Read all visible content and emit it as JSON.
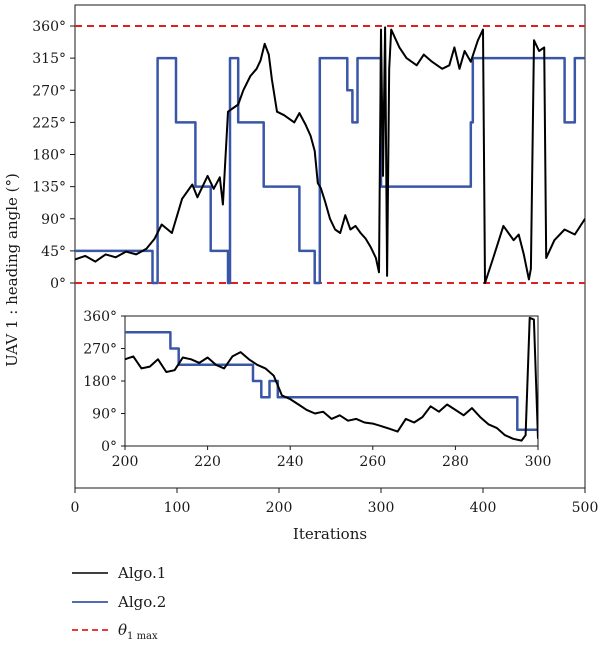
{
  "chart_data": [
    {
      "type": "line",
      "xlabel": "Iterations",
      "ylabel": "UAV 1 : heading angle (°)",
      "xlim": [
        0,
        500
      ],
      "ylim": [
        0,
        360
      ],
      "xticks": [
        "0",
        "100",
        "200",
        "300",
        "400",
        "500"
      ],
      "yticks": [
        "0°",
        "45°",
        "90°",
        "135°",
        "180°",
        "225°",
        "270°",
        "315°",
        "360°"
      ],
      "legend": {
        "placement": "below",
        "entries": [
          "Algo.1",
          "Algo.2",
          "θ1 max"
        ]
      },
      "colors": {
        "algo1": "#000000",
        "algo2": "#3a56a8",
        "theta": "#e02020"
      },
      "series": [
        {
          "name": "Algo.1",
          "points": [
            [
              0,
              33
            ],
            [
              10,
              38
            ],
            [
              20,
              30
            ],
            [
              30,
              40
            ],
            [
              40,
              36
            ],
            [
              50,
              44
            ],
            [
              60,
              40
            ],
            [
              70,
              48
            ],
            [
              78,
              62
            ],
            [
              85,
              82
            ],
            [
              95,
              70
            ],
            [
              105,
              118
            ],
            [
              115,
              138
            ],
            [
              120,
              120
            ],
            [
              130,
              150
            ],
            [
              136,
              132
            ],
            [
              142,
              148
            ],
            [
              145,
              110
            ],
            [
              150,
              240
            ],
            [
              160,
              250
            ],
            [
              165,
              270
            ],
            [
              172,
              290
            ],
            [
              178,
              300
            ],
            [
              182,
              312
            ],
            [
              186,
              335
            ],
            [
              190,
              320
            ],
            [
              193,
              285
            ],
            [
              198,
              240
            ],
            [
              205,
              235
            ],
            [
              215,
              225
            ],
            [
              220,
              238
            ],
            [
              226,
              222
            ],
            [
              231,
              206
            ],
            [
              235,
              185
            ],
            [
              238,
              140
            ],
            [
              241,
              133
            ],
            [
              245,
              115
            ],
            [
              250,
              90
            ],
            [
              255,
              75
            ],
            [
              260,
              70
            ],
            [
              265,
              95
            ],
            [
              270,
              75
            ],
            [
              275,
              80
            ],
            [
              280,
              70
            ],
            [
              285,
              62
            ],
            [
              290,
              50
            ],
            [
              295,
              35
            ],
            [
              298,
              15
            ],
            [
              300,
              355
            ],
            [
              302,
              150
            ],
            [
              304,
              358
            ],
            [
              306,
              10
            ],
            [
              308,
              300
            ],
            [
              310,
              355
            ],
            [
              318,
              330
            ],
            [
              325,
              315
            ],
            [
              335,
              305
            ],
            [
              342,
              320
            ],
            [
              350,
              310
            ],
            [
              360,
              300
            ],
            [
              367,
              305
            ],
            [
              372,
              330
            ],
            [
              377,
              300
            ],
            [
              382,
              325
            ],
            [
              388,
              310
            ],
            [
              395,
              340
            ],
            [
              400,
              355
            ],
            [
              402,
              0
            ],
            [
              410,
              35
            ],
            [
              420,
              80
            ],
            [
              430,
              60
            ],
            [
              435,
              68
            ],
            [
              440,
              40
            ],
            [
              445,
              5
            ],
            [
              447,
              20
            ],
            [
              450,
              340
            ],
            [
              455,
              325
            ],
            [
              460,
              330
            ],
            [
              462,
              35
            ],
            [
              470,
              60
            ],
            [
              480,
              75
            ],
            [
              490,
              68
            ],
            [
              500,
              90
            ]
          ]
        },
        {
          "name": "Algo.2",
          "points": [
            [
              0,
              45
            ],
            [
              76,
              45
            ],
            [
              76,
              0
            ],
            [
              81,
              0
            ],
            [
              81,
              315
            ],
            [
              99,
              315
            ],
            [
              99,
              225
            ],
            [
              118,
              225
            ],
            [
              118,
              135
            ],
            [
              133,
              135
            ],
            [
              133,
              45
            ],
            [
              150,
              45
            ],
            [
              150,
              0
            ],
            [
              152,
              0
            ],
            [
              152,
              315
            ],
            [
              160,
              315
            ],
            [
              160,
              225
            ],
            [
              185,
              225
            ],
            [
              185,
              135
            ],
            [
              220,
              135
            ],
            [
              220,
              45
            ],
            [
              235,
              45
            ],
            [
              235,
              0
            ],
            [
              240,
              0
            ],
            [
              240,
              315
            ],
            [
              267,
              315
            ],
            [
              267,
              270
            ],
            [
              272,
              270
            ],
            [
              272,
              225
            ],
            [
              277,
              225
            ],
            [
              277,
              315
            ],
            [
              300,
              315
            ],
            [
              300,
              135
            ],
            [
              388,
              135
            ],
            [
              388,
              225
            ],
            [
              390,
              225
            ],
            [
              390,
              315
            ],
            [
              480,
              315
            ],
            [
              480,
              225
            ],
            [
              490,
              225
            ],
            [
              490,
              315
            ],
            [
              500,
              315
            ]
          ]
        }
      ],
      "threshold": {
        "name": "θ1 max",
        "values": [
          0,
          360
        ],
        "style": "dashed"
      }
    },
    {
      "type": "line",
      "role": "inset",
      "xlim": [
        200,
        300
      ],
      "ylim": [
        0,
        360
      ],
      "xticks": [
        "200",
        "220",
        "240",
        "260",
        "280",
        "300"
      ],
      "yticks": [
        "0°",
        "90°",
        "180°",
        "270°",
        "360°"
      ],
      "series": [
        {
          "name": "Algo.1",
          "points": [
            [
              200,
              240
            ],
            [
              202,
              248
            ],
            [
              204,
              215
            ],
            [
              206,
              220
            ],
            [
              208,
              240
            ],
            [
              210,
              205
            ],
            [
              212,
              210
            ],
            [
              214,
              245
            ],
            [
              216,
              240
            ],
            [
              218,
              230
            ],
            [
              220,
              245
            ],
            [
              222,
              225
            ],
            [
              224,
              215
            ],
            [
              226,
              248
            ],
            [
              228,
              260
            ],
            [
              230,
              240
            ],
            [
              232,
              225
            ],
            [
              234,
              215
            ],
            [
              236,
              195
            ],
            [
              238,
              140
            ],
            [
              240,
              130
            ],
            [
              242,
              115
            ],
            [
              244,
              100
            ],
            [
              246,
              90
            ],
            [
              248,
              95
            ],
            [
              250,
              75
            ],
            [
              252,
              85
            ],
            [
              254,
              70
            ],
            [
              256,
              75
            ],
            [
              258,
              65
            ],
            [
              260,
              62
            ],
            [
              262,
              55
            ],
            [
              264,
              48
            ],
            [
              266,
              40
            ],
            [
              268,
              75
            ],
            [
              270,
              65
            ],
            [
              272,
              80
            ],
            [
              274,
              110
            ],
            [
              276,
              95
            ],
            [
              278,
              115
            ],
            [
              280,
              100
            ],
            [
              282,
              85
            ],
            [
              284,
              105
            ],
            [
              286,
              80
            ],
            [
              288,
              60
            ],
            [
              290,
              50
            ],
            [
              292,
              30
            ],
            [
              294,
              20
            ],
            [
              296,
              15
            ],
            [
              297,
              30
            ],
            [
              298,
              355
            ],
            [
              299,
              350
            ],
            [
              300,
              20
            ]
          ]
        },
        {
          "name": "Algo.2",
          "points": [
            [
              200,
              315
            ],
            [
              211,
              315
            ],
            [
              211,
              270
            ],
            [
              213,
              270
            ],
            [
              213,
              225
            ],
            [
              231,
              225
            ],
            [
              231,
              180
            ],
            [
              233,
              180
            ],
            [
              233,
              135
            ],
            [
              235,
              135
            ],
            [
              235,
              180
            ],
            [
              237,
              180
            ],
            [
              237,
              135
            ],
            [
              295,
              135
            ],
            [
              295,
              45
            ],
            [
              300,
              45
            ]
          ]
        }
      ]
    }
  ]
}
